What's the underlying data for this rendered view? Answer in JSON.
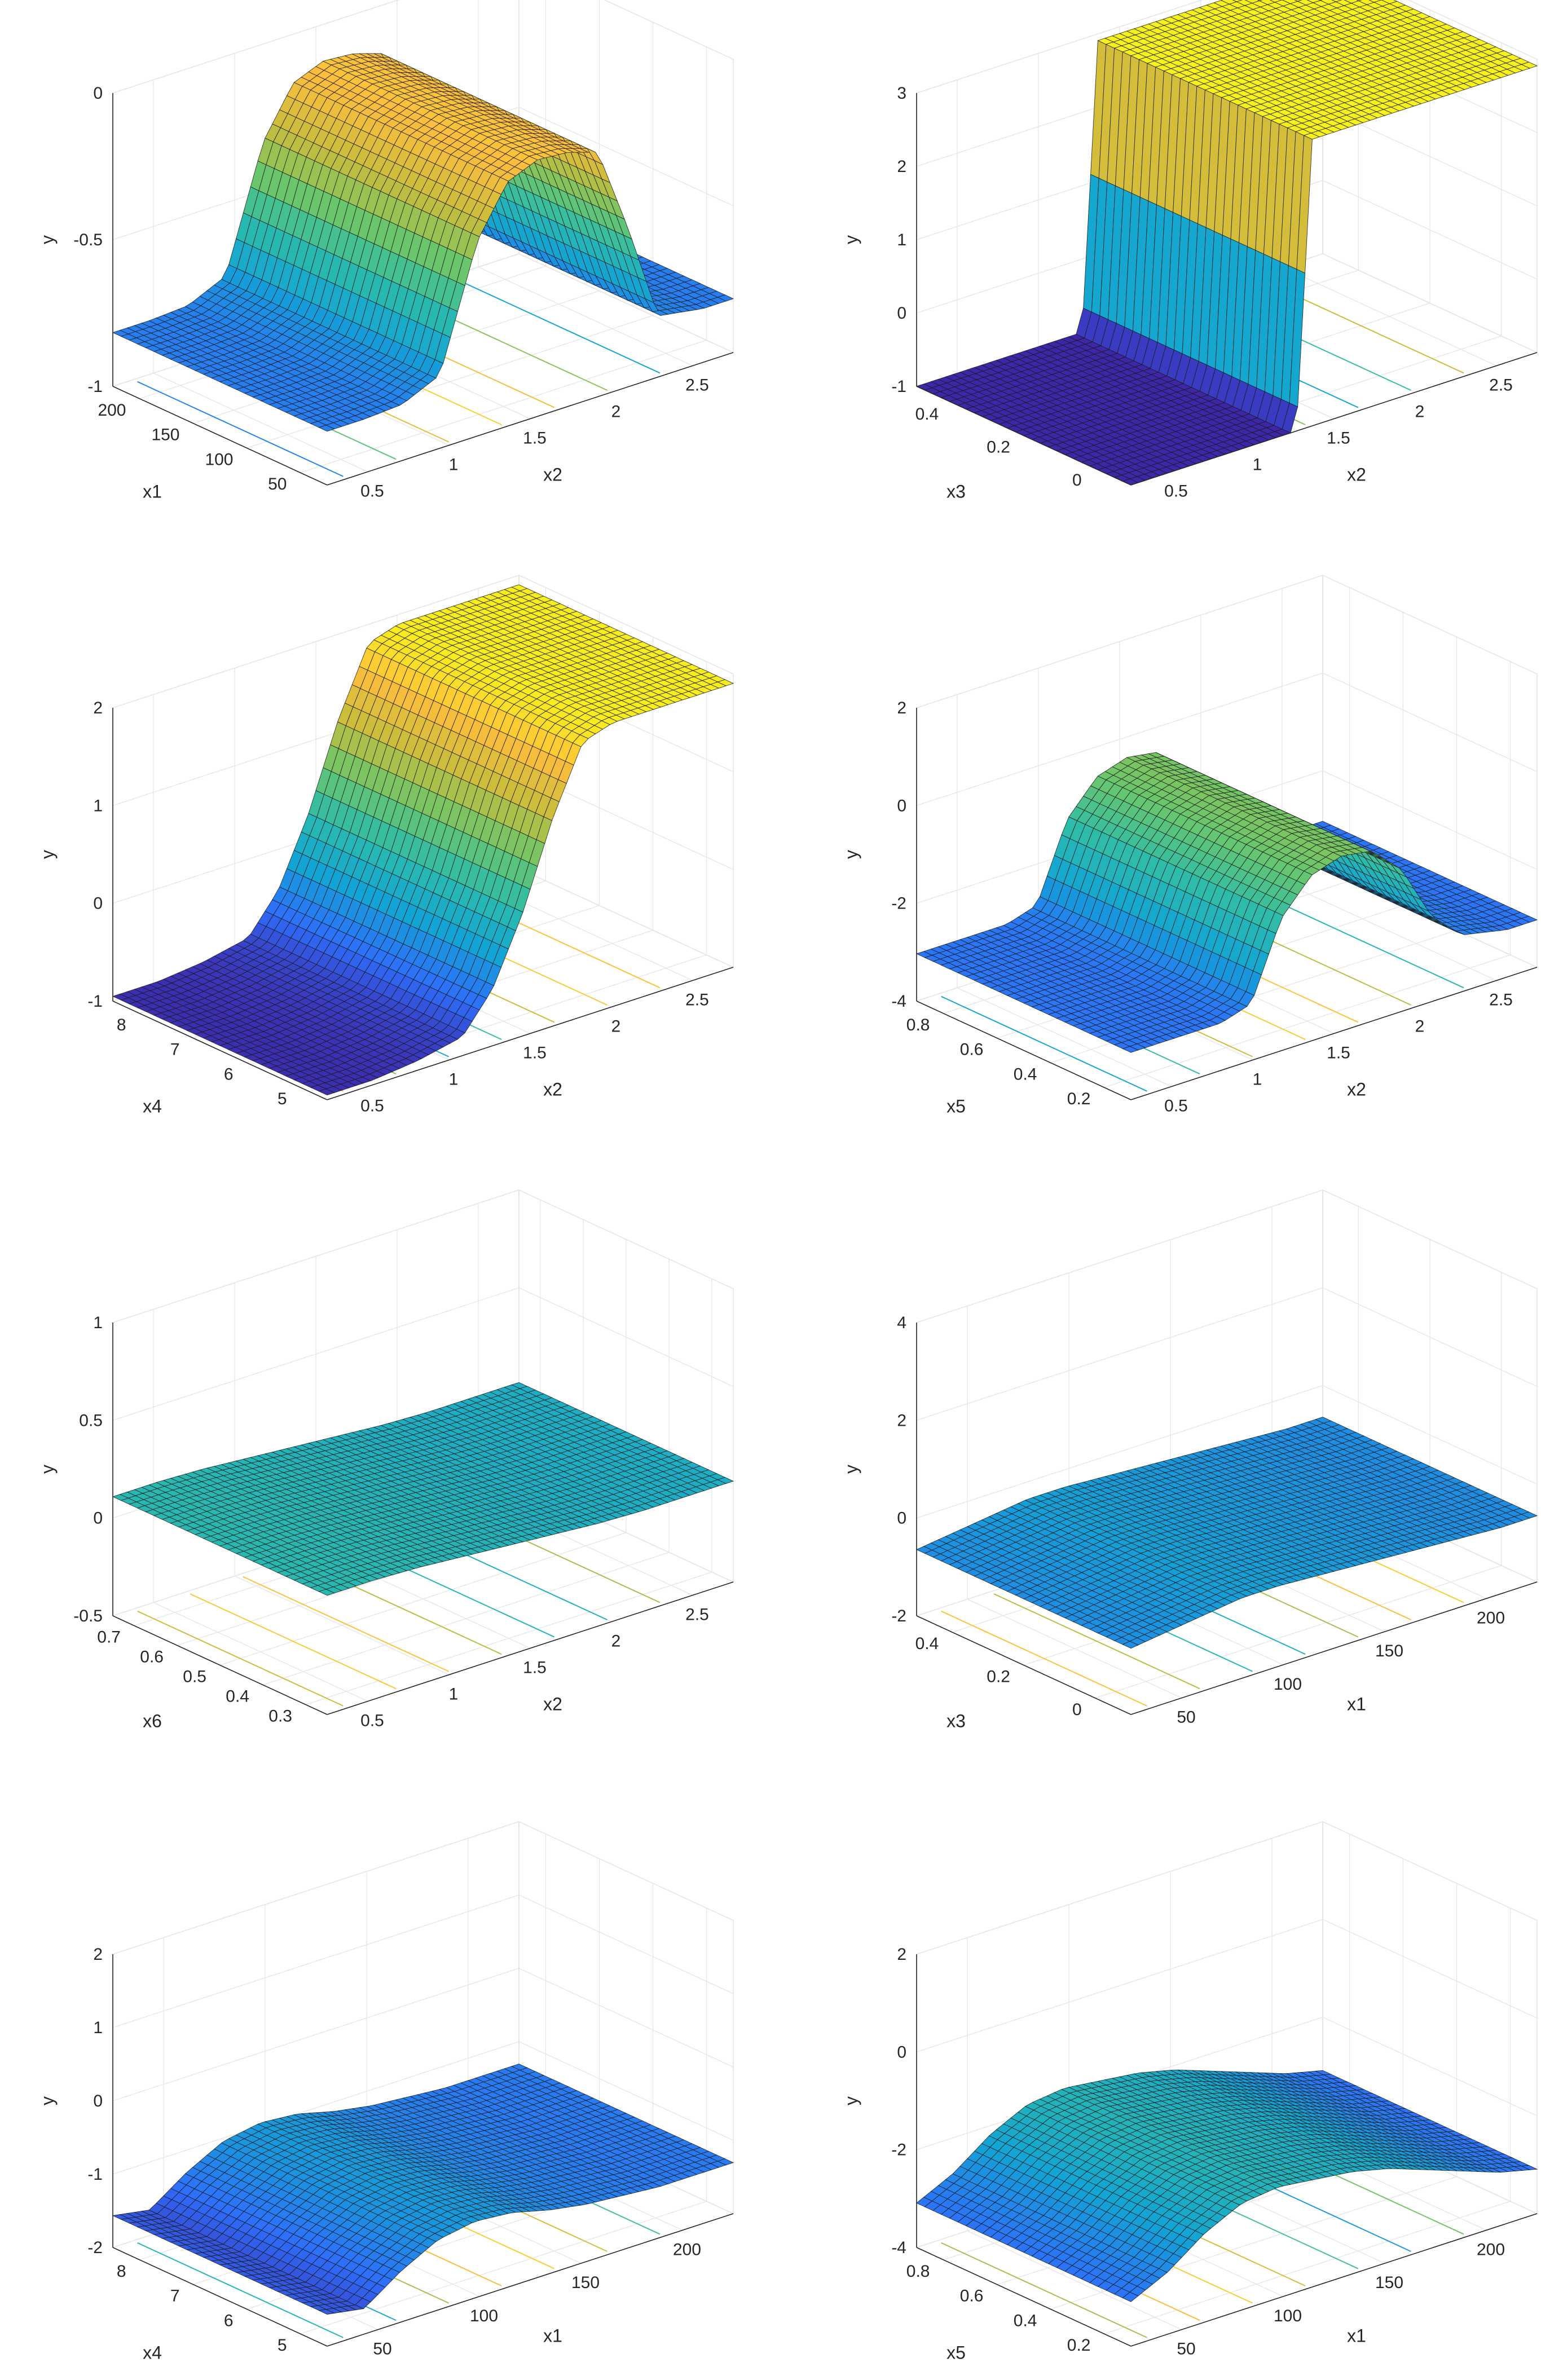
{
  "figure": {
    "type": "surface-grid",
    "rows": 4,
    "columns": 2
  },
  "colormap": [
    "#3e26a8",
    "#2e6ffb",
    "#12a4d4",
    "#2bbcac",
    "#6cc66a",
    "#c7bd3b",
    "#fcbd3d",
    "#f9fb15"
  ],
  "chart_data": [
    {
      "type": "surface",
      "id": "p1",
      "xlabel": "x2",
      "ylabel": "x1",
      "zlabel": "y",
      "xticks": [
        "0.5",
        "1",
        "1.5",
        "2",
        "2.5"
      ],
      "yticks": [
        "50",
        "100",
        "150",
        "200"
      ],
      "zticks": [
        "-1",
        "-0.5",
        "0"
      ],
      "xlim": [
        0,
        2.7
      ],
      "ylim": [
        0,
        220
      ],
      "zlim": [
        -1,
        0.2
      ],
      "profile_x": [
        0,
        0.25,
        0.5,
        0.75,
        1.0,
        1.2,
        1.4,
        1.6,
        1.8,
        2.0,
        2.2,
        2.5,
        2.7
      ],
      "profile_y": [
        -0.78,
        -0.78,
        -0.77,
        -0.7,
        -0.2,
        0.0,
        0.05,
        0.04,
        0.0,
        -0.35,
        -0.75,
        -0.78,
        -0.78
      ]
    },
    {
      "type": "surface",
      "id": "p2",
      "xlabel": "x2",
      "ylabel": "x3",
      "zlabel": "y",
      "xticks": [
        "0.5",
        "1",
        "1.5",
        "2",
        "2.5"
      ],
      "yticks": [
        "0",
        "0.2",
        "0.4"
      ],
      "zticks": [
        "-1",
        "0",
        "1",
        "2",
        "3"
      ],
      "xlim": [
        0,
        2.7
      ],
      "ylim": [
        0,
        0.5
      ],
      "zlim": [
        -1,
        3.4
      ],
      "profile_x": [
        0,
        0.3,
        0.6,
        0.8,
        1.0,
        1.1,
        1.15,
        1.2,
        1.35,
        1.6,
        1.9,
        2.2,
        2.5,
        2.7
      ],
      "profile_y": [
        -1,
        -1,
        -1,
        -1,
        -1,
        -1,
        1.0,
        3.3,
        3.3,
        3.3,
        3.3,
        3.3,
        3.3,
        3.3
      ]
    },
    {
      "type": "surface",
      "id": "p3",
      "xlabel": "x2",
      "ylabel": "x4",
      "zlabel": "y",
      "xticks": [
        "0.5",
        "1",
        "1.5",
        "2",
        "2.5"
      ],
      "yticks": [
        "5",
        "6",
        "7",
        "8"
      ],
      "zticks": [
        "-1",
        "0",
        "1",
        "2"
      ],
      "xlim": [
        0,
        2.7
      ],
      "ylim": [
        5,
        8.2
      ],
      "zlim": [
        -1,
        2.1
      ],
      "profile_x": [
        0,
        0.3,
        0.6,
        0.9,
        1.1,
        1.3,
        1.5,
        1.7,
        1.9,
        2.1,
        2.3,
        2.5,
        2.7
      ],
      "profile_y": [
        -0.95,
        -0.95,
        -0.9,
        -0.8,
        -0.4,
        0.3,
        1.2,
        1.9,
        2.0,
        2.0,
        2.0,
        2.0,
        2.0
      ]
    },
    {
      "type": "surface",
      "id": "p4",
      "xlabel": "x2",
      "ylabel": "x5",
      "zlabel": "y",
      "xticks": [
        "0.5",
        "1",
        "1.5",
        "2",
        "2.5"
      ],
      "yticks": [
        "0.2",
        "0.4",
        "0.6",
        "0.8"
      ],
      "zticks": [
        "-4",
        "-2",
        "0",
        "2"
      ],
      "xlim": [
        0,
        2.7
      ],
      "ylim": [
        0.05,
        0.85
      ],
      "zlim": [
        -4,
        2.2
      ],
      "profile_x": [
        0,
        0.3,
        0.6,
        0.8,
        1.0,
        1.2,
        1.4,
        1.6,
        1.8,
        2.0,
        2.2,
        2.5,
        2.7
      ],
      "profile_y": [
        -3.0,
        -3.0,
        -3.0,
        -2.8,
        -1.2,
        -0.5,
        -0.3,
        -0.4,
        -1.0,
        -2.2,
        -2.8,
        -3.0,
        -3.0
      ]
    },
    {
      "type": "surface",
      "id": "p5",
      "xlabel": "x2",
      "ylabel": "x6",
      "zlabel": "y",
      "xticks": [
        "0.5",
        "1",
        "1.5",
        "2",
        "2.5"
      ],
      "yticks": [
        "0.3",
        "0.4",
        "0.5",
        "0.6",
        "0.7"
      ],
      "zticks": [
        "-0.5",
        "0",
        "0.5",
        "1"
      ],
      "xlim": [
        0,
        2.7
      ],
      "ylim": [
        0.25,
        0.72
      ],
      "zlim": [
        -0.5,
        1.1
      ],
      "profile_x": [
        0,
        0.3,
        0.6,
        0.9,
        1.2,
        1.5,
        1.8,
        2.1,
        2.4,
        2.7
      ],
      "profile_y": [
        0.15,
        0.15,
        0.14,
        0.12,
        0.1,
        0.08,
        0.06,
        0.05,
        0.05,
        0.05
      ]
    },
    {
      "type": "surface",
      "id": "p6",
      "xlabel": "x1",
      "ylabel": "x3",
      "zlabel": "y",
      "xticks": [
        "50",
        "100",
        "150",
        "200"
      ],
      "yticks": [
        "0",
        "0.2",
        "0.4"
      ],
      "zticks": [
        "-2",
        "0",
        "2",
        "4"
      ],
      "xlim": [
        0,
        220
      ],
      "ylim": [
        0,
        0.5
      ],
      "zlim": [
        -2,
        4.2
      ],
      "profile_x": [
        0,
        20,
        40,
        60,
        80,
        100,
        120,
        140,
        160,
        180,
        200,
        220
      ],
      "profile_y": [
        -0.6,
        -0.5,
        -0.4,
        -0.3,
        -0.3,
        -0.35,
        -0.4,
        -0.45,
        -0.5,
        -0.55,
        -0.6,
        -0.6
      ]
    },
    {
      "type": "surface",
      "id": "p7",
      "xlabel": "x1",
      "ylabel": "x4",
      "zlabel": "y",
      "xticks": [
        "50",
        "100",
        "150",
        "200"
      ],
      "yticks": [
        "5",
        "6",
        "7",
        "8"
      ],
      "zticks": [
        "-2",
        "-1",
        "0",
        "1",
        "2"
      ],
      "xlim": [
        0,
        220
      ],
      "ylim": [
        5,
        8.2
      ],
      "zlim": [
        -2,
        2.6
      ],
      "profile_x": [
        0,
        20,
        40,
        60,
        80,
        100,
        120,
        140,
        160,
        180,
        200,
        220
      ],
      "profile_y": [
        -1.5,
        -1.6,
        -1.2,
        -0.9,
        -0.8,
        -0.85,
        -1.0,
        -1.1,
        -1.15,
        -1.2,
        -1.2,
        -1.2
      ]
    },
    {
      "type": "surface",
      "id": "p8",
      "xlabel": "x1",
      "ylabel": "x5",
      "zlabel": "y",
      "xticks": [
        "50",
        "100",
        "150",
        "200"
      ],
      "yticks": [
        "0.2",
        "0.4",
        "0.6",
        "0.8"
      ],
      "zticks": [
        "-4",
        "-2",
        "0",
        "2"
      ],
      "xlim": [
        0,
        220
      ],
      "ylim": [
        0.05,
        0.85
      ],
      "zlim": [
        -4,
        2.6
      ],
      "profile_x": [
        0,
        20,
        40,
        60,
        80,
        100,
        120,
        140,
        160,
        180,
        200,
        220
      ],
      "profile_y": [
        -3.0,
        -2.6,
        -2.0,
        -1.6,
        -1.5,
        -1.6,
        -1.7,
        -1.9,
        -2.2,
        -2.5,
        -2.8,
        -3.0
      ]
    }
  ]
}
